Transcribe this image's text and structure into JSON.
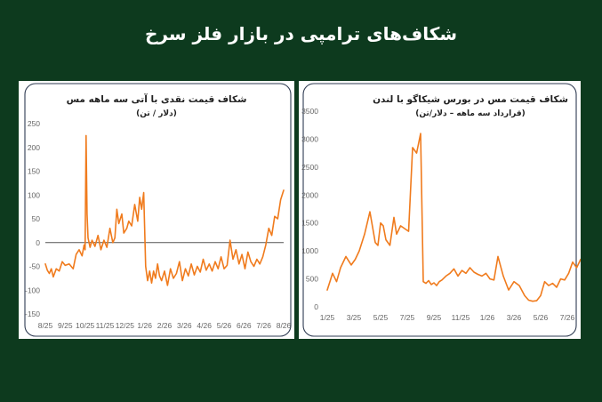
{
  "headline": "شکاف‌های ترامپی در بازار فلز سرخ",
  "colors": {
    "background": "#0d3a1e",
    "series": "#f07b1d",
    "frame": "#2f3b52",
    "zero_line": "#555555"
  },
  "chart_data": [
    {
      "type": "line",
      "title": "شکاف قیمت نقدی با آتی سه ماهه مس",
      "subtitle": "(دلار / تن)",
      "ylim": [
        -150,
        250
      ],
      "yticks": [
        "250",
        "200",
        "150",
        "100",
        "50",
        "0",
        "-50",
        "-100",
        "-150"
      ],
      "ytick_values": [
        250,
        200,
        150,
        100,
        50,
        0,
        -50,
        -100,
        -150
      ],
      "xticks": [
        "8/25",
        "9/25",
        "10/25",
        "11/25",
        "12/25",
        "1/26",
        "2/26",
        "3/26",
        "4/26",
        "5/26",
        "6/26",
        "7/26",
        "8/26"
      ],
      "zero_line": true,
      "series": [
        {
          "x": [
            0,
            0.1,
            0.2,
            0.3,
            0.4,
            0.55,
            0.7,
            0.85,
            1.0,
            1.2,
            1.4,
            1.55,
            1.7,
            1.85,
            1.95,
            2.0,
            2.05,
            2.1,
            2.15,
            2.25,
            2.35,
            2.5,
            2.65,
            2.8,
            2.95,
            3.1,
            3.25,
            3.4,
            3.5,
            3.6,
            3.7,
            3.85,
            3.95,
            4.1,
            4.2,
            4.35,
            4.5,
            4.65,
            4.75,
            4.85,
            4.95,
            5.05,
            5.15,
            5.25,
            5.35,
            5.45,
            5.55,
            5.65,
            5.75,
            5.85,
            6.0,
            6.15,
            6.3,
            6.45,
            6.6,
            6.75,
            6.9,
            7.05,
            7.2,
            7.35,
            7.5,
            7.65,
            7.8,
            7.95,
            8.1,
            8.25,
            8.4,
            8.55,
            8.7,
            8.85,
            9.0,
            9.15,
            9.3,
            9.45,
            9.6,
            9.75,
            9.9,
            10.05,
            10.2,
            10.35,
            10.5,
            10.65,
            10.8,
            10.95,
            11.1,
            11.25,
            11.4,
            11.55,
            11.7,
            11.85,
            12.0
          ],
          "y": [
            -45,
            -58,
            -65,
            -55,
            -72,
            -55,
            -60,
            -40,
            -48,
            -45,
            -55,
            -25,
            -15,
            -28,
            -5,
            -15,
            225,
            60,
            10,
            -10,
            5,
            -8,
            15,
            -15,
            5,
            -10,
            30,
            0,
            10,
            70,
            40,
            60,
            20,
            30,
            45,
            35,
            80,
            45,
            95,
            70,
            105,
            -50,
            -80,
            -60,
            -85,
            -60,
            -75,
            -45,
            -70,
            -80,
            -60,
            -90,
            -55,
            -75,
            -65,
            -40,
            -80,
            -55,
            -70,
            -45,
            -68,
            -50,
            -62,
            -35,
            -58,
            -45,
            -60,
            -40,
            -55,
            -30,
            -55,
            -48,
            5,
            -35,
            -15,
            -45,
            -25,
            -55,
            -20,
            -40,
            -50,
            -35,
            -45,
            -30,
            -5,
            30,
            15,
            55,
            50,
            90,
            110
          ]
        }
      ]
    },
    {
      "type": "line",
      "title": "شکاف قیمت مس در بورس شیکاگو با لندن",
      "subtitle": "(قرارداد سه ماهه – دلار/تن)",
      "ylim": [
        0,
        3500
      ],
      "yticks": [
        "3500",
        "3000",
        "2500",
        "2000",
        "1500",
        "1000",
        "500",
        "0"
      ],
      "ytick_values": [
        3500,
        3000,
        2500,
        2000,
        1500,
        1000,
        500,
        0
      ],
      "xticks": [
        "1/25",
        "3/25",
        "5/25",
        "7/25",
        "9/25",
        "11/25",
        "1/26",
        "3/26",
        "5/26",
        "7/26"
      ],
      "zero_line": false,
      "series": [
        {
          "x": [
            0,
            0.1,
            0.2,
            0.35,
            0.5,
            0.7,
            0.9,
            1.05,
            1.2,
            1.4,
            1.6,
            1.8,
            1.9,
            2.0,
            2.1,
            2.2,
            2.35,
            2.5,
            2.6,
            2.75,
            2.9,
            3.05,
            3.2,
            3.35,
            3.5,
            3.6,
            3.7,
            3.8,
            3.9,
            4.0,
            4.1,
            4.2,
            4.3,
            4.45,
            4.6,
            4.75,
            4.9,
            5.05,
            5.2,
            5.35,
            5.5,
            5.65,
            5.8,
            5.95,
            6.1,
            6.25,
            6.4,
            6.6,
            6.8,
            7.0,
            7.2,
            7.4,
            7.55,
            7.7,
            7.85,
            8.0,
            8.15,
            8.3,
            8.45,
            8.6,
            8.75,
            8.9,
            9.05,
            9.2,
            9.35,
            9.5,
            9.65,
            9.8,
            9.95,
            10.1,
            10.25,
            10.4,
            10.55,
            10.7,
            10.85,
            10.95
          ],
          "y": [
            300,
            450,
            600,
            450,
            700,
            900,
            750,
            850,
            1000,
            1300,
            1700,
            1150,
            1100,
            1500,
            1450,
            1200,
            1100,
            1600,
            1300,
            1450,
            1400,
            1350,
            2850,
            2750,
            3100,
            450,
            420,
            470,
            400,
            430,
            380,
            450,
            480,
            550,
            600,
            680,
            550,
            650,
            600,
            700,
            620,
            580,
            550,
            600,
            500,
            480,
            900,
            550,
            300,
            450,
            380,
            200,
            120,
            100,
            110,
            200,
            450,
            380,
            420,
            350,
            500,
            480,
            600,
            800,
            700,
            850,
            870,
            600,
            500,
            650,
            550,
            600,
            800,
            1200,
            1250,
            1200
          ]
        }
      ]
    }
  ]
}
